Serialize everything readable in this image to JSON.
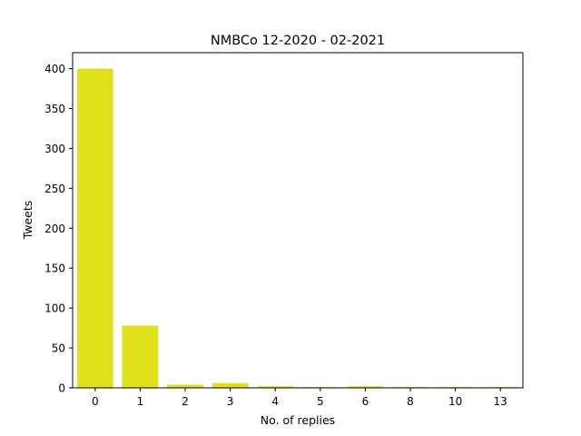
{
  "chart_data": {
    "type": "bar",
    "title": "NMBCo 12-2020 - 02-2021",
    "xlabel": "No. of replies",
    "ylabel": "Tweets",
    "categories": [
      "0",
      "1",
      "2",
      "3",
      "4",
      "5",
      "6",
      "8",
      "10",
      "13"
    ],
    "values": [
      400,
      78,
      4,
      6,
      2,
      1,
      2,
      1,
      1,
      1
    ],
    "ylim": [
      0,
      420
    ],
    "yticks": [
      0,
      50,
      100,
      150,
      200,
      250,
      300,
      350,
      400
    ],
    "bar_color": "#e0e01a",
    "grid": false,
    "legend": "none"
  }
}
